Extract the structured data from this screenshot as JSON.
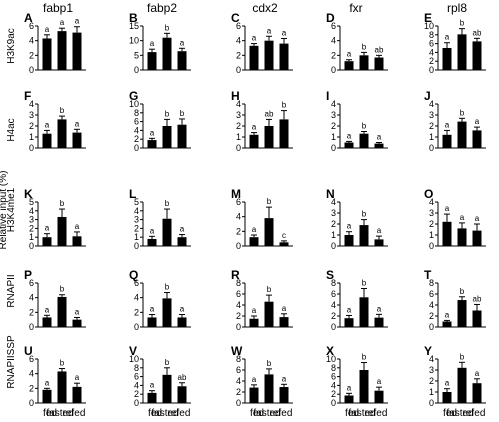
{
  "figure": {
    "column_genes": [
      "fabp1",
      "fabp2",
      "cdx2",
      "fxr",
      "rpl8"
    ],
    "row_marks": [
      "H3K9ac",
      "H4ac",
      "H3K4me1",
      "RNAPII",
      "RNAPIISSP"
    ],
    "y_axis_label": "Relative input (%)",
    "categories": [
      "fed",
      "fasted",
      "refed"
    ]
  },
  "chart_data": [
    {
      "type": "bar",
      "panel": "A",
      "gene": "fabp1",
      "mark": "H3K9ac",
      "categories": [
        "fed",
        "fasted",
        "refed"
      ],
      "values": [
        4.3,
        5.3,
        5.1
      ],
      "errors": [
        0.5,
        0.4,
        0.8
      ],
      "sig": [
        "a",
        "a",
        "a"
      ],
      "ylim": [
        0,
        6
      ],
      "yticks": [
        0,
        2,
        4,
        6
      ]
    },
    {
      "type": "bar",
      "panel": "B",
      "gene": "fabp2",
      "mark": "H3K9ac",
      "categories": [
        "fed",
        "fasted",
        "refed"
      ],
      "values": [
        6.1,
        11.0,
        6.4
      ],
      "errors": [
        1.0,
        1.5,
        1.0
      ],
      "sig": [
        "a",
        "b",
        "a"
      ],
      "ylim": [
        0,
        15
      ],
      "yticks": [
        0,
        5,
        10,
        15
      ]
    },
    {
      "type": "bar",
      "panel": "C",
      "gene": "cdx2",
      "mark": "H3K9ac",
      "categories": [
        "fed",
        "fasted",
        "refed"
      ],
      "values": [
        3.3,
        4.0,
        3.6
      ],
      "errors": [
        0.3,
        0.6,
        0.7
      ],
      "sig": [
        "a",
        "a",
        "a"
      ],
      "ylim": [
        0,
        6
      ],
      "yticks": [
        0,
        2,
        4,
        6
      ]
    },
    {
      "type": "bar",
      "panel": "D",
      "gene": "fxr",
      "mark": "H3K9ac",
      "categories": [
        "fed",
        "fasted",
        "refed"
      ],
      "values": [
        1.2,
        2.0,
        1.7
      ],
      "errors": [
        0.2,
        0.4,
        0.3
      ],
      "sig": [
        "a",
        "b",
        "ab"
      ],
      "ylim": [
        0,
        6
      ],
      "yticks": [
        0,
        2,
        4,
        6
      ]
    },
    {
      "type": "bar",
      "panel": "E",
      "gene": "rpl8",
      "mark": "H3K9ac",
      "categories": [
        "fed",
        "fasted",
        "refed"
      ],
      "values": [
        5.0,
        8.1,
        6.5
      ],
      "errors": [
        1.2,
        1.3,
        0.7
      ],
      "sig": [
        "a",
        "b",
        "ab"
      ],
      "ylim": [
        0,
        10
      ],
      "yticks": [
        0,
        2,
        4,
        6,
        8,
        10
      ]
    },
    {
      "type": "bar",
      "panel": "F",
      "gene": "fabp1",
      "mark": "H4ac",
      "categories": [
        "fed",
        "fasted",
        "refed"
      ],
      "values": [
        1.3,
        2.6,
        1.4
      ],
      "errors": [
        0.3,
        0.3,
        0.3
      ],
      "sig": [
        "a",
        "b",
        "a"
      ],
      "ylim": [
        0,
        4
      ],
      "yticks": [
        0,
        1,
        2,
        3,
        4
      ]
    },
    {
      "type": "bar",
      "panel": "G",
      "gene": "fabp2",
      "mark": "H4ac",
      "categories": [
        "fed",
        "fasted",
        "refed"
      ],
      "values": [
        1.8,
        5.0,
        5.3
      ],
      "errors": [
        0.4,
        1.5,
        1.3
      ],
      "sig": [
        "a",
        "b",
        "b"
      ],
      "ylim": [
        0,
        10
      ],
      "yticks": [
        0,
        2,
        4,
        6,
        8,
        10
      ]
    },
    {
      "type": "bar",
      "panel": "H",
      "gene": "cdx2",
      "mark": "H4ac",
      "categories": [
        "fed",
        "fasted",
        "refed"
      ],
      "values": [
        1.2,
        2.0,
        2.6
      ],
      "errors": [
        0.2,
        0.6,
        0.8
      ],
      "sig": [
        "a",
        "ab",
        "b"
      ],
      "ylim": [
        0,
        4
      ],
      "yticks": [
        0,
        1,
        2,
        3,
        4
      ]
    },
    {
      "type": "bar",
      "panel": "I",
      "gene": "fxr",
      "mark": "H4ac",
      "categories": [
        "fed",
        "fasted",
        "refed"
      ],
      "values": [
        0.5,
        1.3,
        0.4
      ],
      "errors": [
        0.1,
        0.2,
        0.1
      ],
      "sig": [
        "a",
        "b",
        "a"
      ],
      "ylim": [
        0,
        4
      ],
      "yticks": [
        0,
        1,
        2,
        3,
        4
      ]
    },
    {
      "type": "bar",
      "panel": "J",
      "gene": "rpl8",
      "mark": "H4ac",
      "categories": [
        "fed",
        "fasted",
        "refed"
      ],
      "values": [
        1.2,
        2.4,
        1.6
      ],
      "errors": [
        0.4,
        0.3,
        0.3
      ],
      "sig": [
        "a",
        "b",
        "a"
      ],
      "ylim": [
        0,
        4
      ],
      "yticks": [
        0,
        1,
        2,
        3,
        4
      ]
    },
    {
      "type": "bar",
      "panel": "K",
      "gene": "fabp1",
      "mark": "H3K4me1",
      "categories": [
        "fed",
        "fasted",
        "refed"
      ],
      "values": [
        1.0,
        3.3,
        1.1
      ],
      "errors": [
        0.4,
        0.9,
        0.5
      ],
      "sig": [
        "a",
        "b",
        "a"
      ],
      "ylim": [
        0,
        5
      ],
      "yticks": [
        0,
        1,
        2,
        3,
        4,
        5
      ]
    },
    {
      "type": "bar",
      "panel": "L",
      "gene": "fabp2",
      "mark": "H3K4me1",
      "categories": [
        "fed",
        "fasted",
        "refed"
      ],
      "values": [
        0.8,
        3.1,
        1.0
      ],
      "errors": [
        0.3,
        1.1,
        0.3
      ],
      "sig": [
        "a",
        "b",
        "a"
      ],
      "ylim": [
        0,
        5
      ],
      "yticks": [
        0,
        1,
        2,
        3,
        4,
        5
      ]
    },
    {
      "type": "bar",
      "panel": "M",
      "gene": "cdx2",
      "mark": "H3K4me1",
      "categories": [
        "fed",
        "fasted",
        "refed"
      ],
      "values": [
        1.2,
        3.8,
        0.5
      ],
      "errors": [
        0.3,
        1.5,
        0.2
      ],
      "sig": [
        "a",
        "b",
        "c"
      ],
      "ylim": [
        0,
        6
      ],
      "yticks": [
        0,
        2,
        4,
        6
      ]
    },
    {
      "type": "bar",
      "panel": "N",
      "gene": "fxr",
      "mark": "H3K4me1",
      "categories": [
        "fed",
        "fasted",
        "refed"
      ],
      "values": [
        1.0,
        1.9,
        0.6
      ],
      "errors": [
        0.3,
        0.5,
        0.3
      ],
      "sig": [
        "a",
        "b",
        "a"
      ],
      "ylim": [
        0,
        4
      ],
      "yticks": [
        0,
        1,
        2,
        3,
        4
      ]
    },
    {
      "type": "bar",
      "panel": "O",
      "gene": "rpl8",
      "mark": "H3K4me1",
      "categories": [
        "fed",
        "fasted",
        "refed"
      ],
      "values": [
        2.2,
        1.6,
        1.4
      ],
      "errors": [
        0.7,
        0.5,
        0.6
      ],
      "sig": [
        "a",
        "a",
        "a"
      ],
      "ylim": [
        0,
        4
      ],
      "yticks": [
        0,
        1,
        2,
        3,
        4
      ]
    },
    {
      "type": "bar",
      "panel": "P",
      "gene": "fabp1",
      "mark": "RNAPII",
      "categories": [
        "fed",
        "fasted",
        "refed"
      ],
      "values": [
        1.3,
        4.1,
        1.0
      ],
      "errors": [
        0.3,
        0.3,
        0.3
      ],
      "sig": [
        "a",
        "b",
        "a"
      ],
      "ylim": [
        0,
        6
      ],
      "yticks": [
        0,
        2,
        4,
        6
      ]
    },
    {
      "type": "bar",
      "panel": "Q",
      "gene": "fabp2",
      "mark": "RNAPII",
      "categories": [
        "fed",
        "fasted",
        "refed"
      ],
      "values": [
        1.3,
        3.9,
        1.3
      ],
      "errors": [
        0.4,
        0.8,
        0.4
      ],
      "sig": [
        "a",
        "b",
        "a"
      ],
      "ylim": [
        0,
        6
      ],
      "yticks": [
        0,
        2,
        4,
        6
      ]
    },
    {
      "type": "bar",
      "panel": "R",
      "gene": "cdx2",
      "mark": "RNAPII",
      "categories": [
        "fed",
        "fasted",
        "refed"
      ],
      "values": [
        1.5,
        4.6,
        1.8
      ],
      "errors": [
        0.5,
        1.2,
        0.6
      ],
      "sig": [
        "a",
        "b",
        "a"
      ],
      "ylim": [
        0,
        8
      ],
      "yticks": [
        0,
        2,
        4,
        6,
        8
      ]
    },
    {
      "type": "bar",
      "panel": "S",
      "gene": "fxr",
      "mark": "RNAPII",
      "categories": [
        "fed",
        "fasted",
        "refed"
      ],
      "values": [
        1.6,
        5.4,
        1.7
      ],
      "errors": [
        0.5,
        1.6,
        0.6
      ],
      "sig": [
        "a",
        "b",
        "a"
      ],
      "ylim": [
        0,
        8
      ],
      "yticks": [
        0,
        2,
        4,
        6,
        8
      ]
    },
    {
      "type": "bar",
      "panel": "T",
      "gene": "rpl8",
      "mark": "RNAPII",
      "categories": [
        "fed",
        "fasted",
        "refed"
      ],
      "values": [
        1.0,
        4.9,
        3.0
      ],
      "errors": [
        0.2,
        0.6,
        1.1
      ],
      "sig": [
        "a",
        "b",
        "ab"
      ],
      "ylim": [
        0,
        8
      ],
      "yticks": [
        0,
        2,
        4,
        6,
        8
      ]
    },
    {
      "type": "bar",
      "panel": "U",
      "gene": "fabp1",
      "mark": "RNAPIISSP",
      "categories": [
        "fed",
        "fasted",
        "refed"
      ],
      "values": [
        1.8,
        4.3,
        2.2
      ],
      "errors": [
        0.2,
        0.4,
        0.5
      ],
      "sig": [
        "a",
        "b",
        "a"
      ],
      "ylim": [
        0,
        6
      ],
      "yticks": [
        0,
        2,
        4,
        6
      ]
    },
    {
      "type": "bar",
      "panel": "V",
      "gene": "fabp2",
      "mark": "RNAPIISSP",
      "categories": [
        "fed",
        "fasted",
        "refed"
      ],
      "values": [
        2.3,
        6.4,
        3.8
      ],
      "errors": [
        0.5,
        1.6,
        0.8
      ],
      "sig": [
        "a",
        "b",
        "ab"
      ],
      "ylim": [
        0,
        10
      ],
      "yticks": [
        0,
        2,
        4,
        6,
        8,
        10
      ]
    },
    {
      "type": "bar",
      "panel": "W",
      "gene": "cdx2",
      "mark": "RNAPIISSP",
      "categories": [
        "fed",
        "fasted",
        "refed"
      ],
      "values": [
        2.8,
        5.2,
        2.9
      ],
      "errors": [
        0.5,
        1.0,
        0.5
      ],
      "sig": [
        "a",
        "b",
        "a"
      ],
      "ylim": [
        0,
        8
      ],
      "yticks": [
        0,
        2,
        4,
        6,
        8
      ]
    },
    {
      "type": "bar",
      "panel": "X",
      "gene": "fxr",
      "mark": "RNAPIISSP",
      "categories": [
        "fed",
        "fasted",
        "refed"
      ],
      "values": [
        1.7,
        7.5,
        2.8
      ],
      "errors": [
        0.5,
        1.7,
        0.8
      ],
      "sig": [
        "a",
        "b",
        "a"
      ],
      "ylim": [
        0,
        10
      ],
      "yticks": [
        0,
        2,
        4,
        6,
        8,
        10
      ]
    },
    {
      "type": "bar",
      "panel": "Y",
      "gene": "rpl8",
      "mark": "RNAPIISSP",
      "categories": [
        "fed",
        "fasted",
        "refed"
      ],
      "values": [
        1.0,
        3.2,
        1.8
      ],
      "errors": [
        0.3,
        0.5,
        0.4
      ],
      "sig": [
        "a",
        "b",
        "a"
      ],
      "ylim": [
        0,
        4
      ],
      "yticks": [
        0,
        1,
        2,
        3,
        4
      ]
    }
  ]
}
